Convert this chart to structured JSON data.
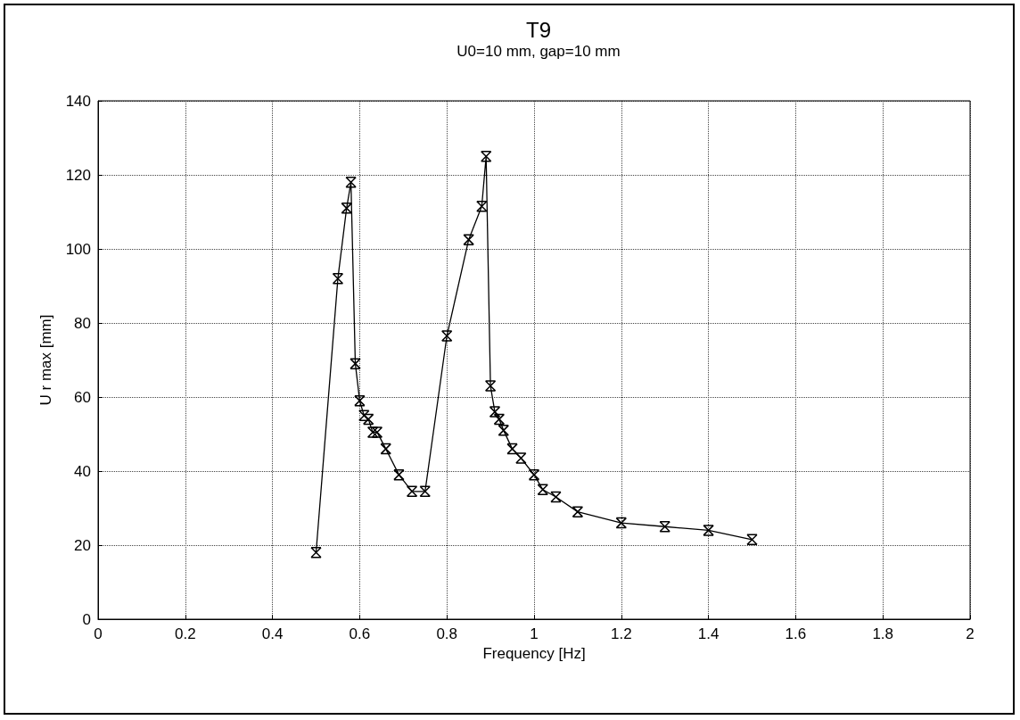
{
  "chart_data": {
    "type": "line",
    "title": "T9",
    "subtitle": "U0=10 mm, gap=10 mm",
    "xlabel": "Frequency [Hz]",
    "ylabel": "U r max [mm]",
    "x": [
      0.5,
      0.55,
      0.57,
      0.58,
      0.59,
      0.6,
      0.61,
      0.62,
      0.63,
      0.64,
      0.66,
      0.69,
      0.72,
      0.75,
      0.8,
      0.85,
      0.88,
      0.89,
      0.9,
      0.91,
      0.92,
      0.93,
      0.95,
      0.97,
      1.0,
      1.02,
      1.05,
      1.1,
      1.2,
      1.3,
      1.4,
      1.5
    ],
    "series": [
      {
        "color": "#000000",
        "values": [
          18,
          92,
          111,
          118,
          69,
          59,
          55,
          54,
          50.5,
          50.5,
          46,
          39,
          34.5,
          34.5,
          76.5,
          102.5,
          111.5,
          125,
          63,
          56,
          54,
          51,
          46,
          43.5,
          39,
          35,
          33,
          29,
          26,
          25,
          24,
          21.5
        ]
      }
    ],
    "xlim": [
      0,
      2
    ],
    "xticks": [
      0,
      0.2,
      0.4,
      0.6,
      0.8,
      1,
      1.2,
      1.4,
      1.6,
      1.8,
      2
    ],
    "ylim": [
      0,
      140
    ],
    "yticks": [
      0,
      20,
      40,
      60,
      80,
      100,
      120,
      140
    ],
    "grid": true,
    "marker": "cross",
    "line_style": "solid"
  }
}
